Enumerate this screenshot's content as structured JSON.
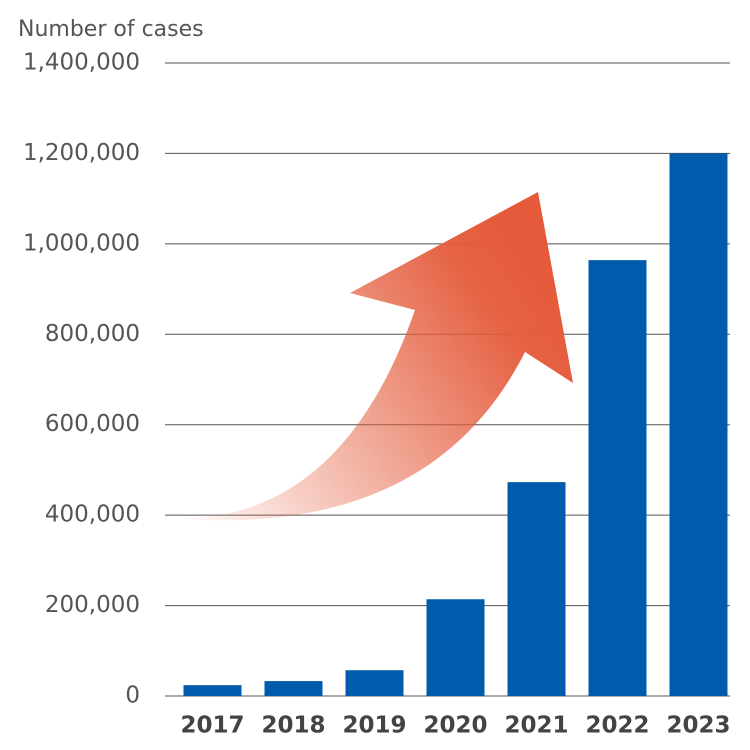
{
  "chart_data": {
    "type": "bar",
    "y_label": "Number of cases",
    "categories": [
      "2017",
      "2018",
      "2019",
      "2020",
      "2021",
      "2022",
      "2023"
    ],
    "values": [
      24000,
      33000,
      57000,
      214000,
      473000,
      964000,
      1200000
    ],
    "color": "#005bac",
    "ylim": [
      0,
      1400000
    ],
    "yticks": [
      0,
      {
        "value": 200000,
        "label": "200,000"
      },
      {
        "value": 400000,
        "label": "400,000"
      },
      {
        "value": 600000,
        "label": "600,000"
      },
      {
        "value": 800000,
        "label": "800,000"
      },
      {
        "value": 1000000,
        "label": "1,000,000"
      },
      {
        "value": 1200000,
        "label": "1,200,000"
      },
      {
        "value": 1400000,
        "label": "1,400,000"
      }
    ],
    "grid": true
  }
}
